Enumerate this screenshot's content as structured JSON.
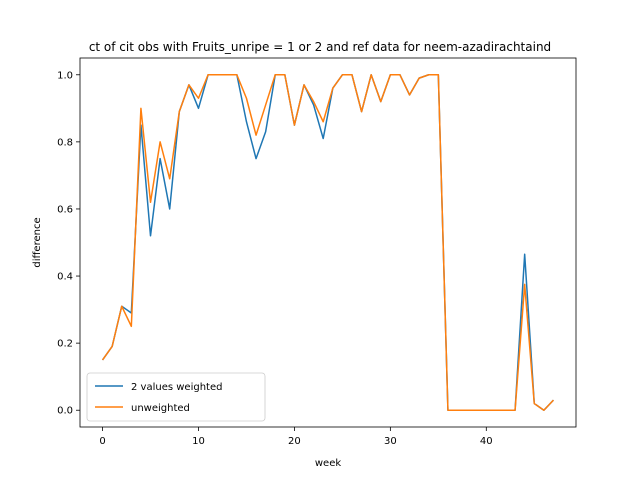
{
  "chart_data": {
    "type": "line",
    "title": "ct of cit obs with Fruits_unripe = 1 or 2 and ref data for neem-azadirachtaind",
    "xlabel": "week",
    "ylabel": "difference",
    "xlim": [
      -2.35,
      49.35
    ],
    "ylim": [
      -0.05,
      1.05
    ],
    "x_ticks": [
      0,
      10,
      20,
      30,
      40
    ],
    "y_ticks": [
      0.0,
      0.2,
      0.4,
      0.6,
      0.8,
      1.0
    ],
    "y_tick_labels": [
      "0.0",
      "0.2",
      "0.4",
      "0.6",
      "0.8",
      "1.0"
    ],
    "grid": false,
    "legend_position": "lower-left",
    "x": [
      0,
      1,
      2,
      3,
      4,
      5,
      6,
      7,
      8,
      9,
      10,
      11,
      12,
      13,
      14,
      15,
      16,
      17,
      18,
      19,
      20,
      21,
      22,
      23,
      24,
      25,
      26,
      27,
      28,
      29,
      30,
      31,
      32,
      33,
      34,
      35,
      36,
      37,
      38,
      39,
      40,
      41,
      42,
      43,
      44,
      45,
      46,
      47
    ],
    "series": [
      {
        "name": "2 values weighted",
        "color": "#1f77b4",
        "values": [
          0.15,
          0.19,
          0.31,
          0.29,
          0.85,
          0.52,
          0.75,
          0.6,
          0.89,
          0.97,
          0.9,
          1.0,
          1.0,
          1.0,
          1.0,
          0.86,
          0.75,
          0.83,
          1.0,
          1.0,
          0.85,
          0.97,
          0.91,
          0.81,
          0.96,
          1.0,
          1.0,
          0.89,
          1.0,
          0.92,
          1.0,
          1.0,
          0.94,
          0.99,
          1.0,
          1.0,
          0.0,
          0.0,
          0.0,
          0.0,
          0.0,
          0.0,
          0.0,
          0.0,
          0.465,
          0.02,
          0.0,
          0.03
        ]
      },
      {
        "name": "unweighted",
        "color": "#ff7f0e",
        "values": [
          0.15,
          0.19,
          0.31,
          0.25,
          0.9,
          0.62,
          0.8,
          0.69,
          0.89,
          0.97,
          0.93,
          1.0,
          1.0,
          1.0,
          1.0,
          0.93,
          0.82,
          0.91,
          1.0,
          1.0,
          0.85,
          0.97,
          0.92,
          0.86,
          0.96,
          1.0,
          1.0,
          0.89,
          1.0,
          0.92,
          1.0,
          1.0,
          0.94,
          0.99,
          1.0,
          1.0,
          0.0,
          0.0,
          0.0,
          0.0,
          0.0,
          0.0,
          0.0,
          0.0,
          0.375,
          0.02,
          0.0,
          0.03
        ]
      }
    ]
  }
}
